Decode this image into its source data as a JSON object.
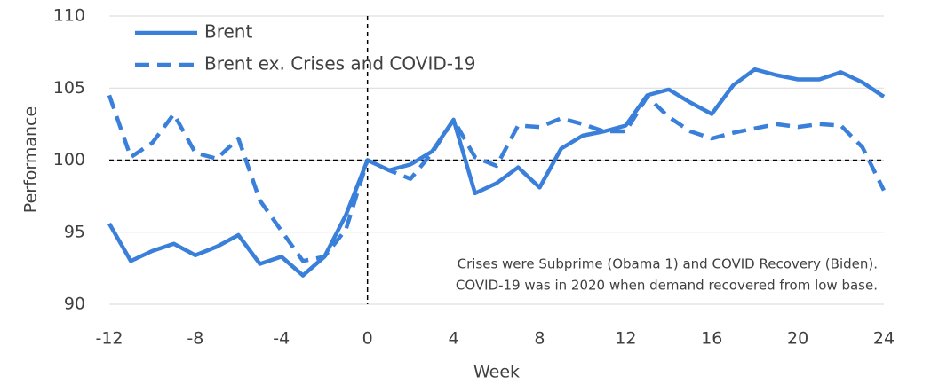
{
  "chart_data": {
    "type": "line",
    "xlabel": "Week",
    "ylabel": "Performance",
    "x": [
      -12,
      -11,
      -10,
      -9,
      -8,
      -7,
      -6,
      -5,
      -4,
      -3,
      -2,
      -1,
      0,
      1,
      2,
      3,
      4,
      5,
      6,
      7,
      8,
      9,
      10,
      11,
      12,
      13,
      14,
      15,
      16,
      17,
      18,
      19,
      20,
      21,
      22,
      23,
      24
    ],
    "series": [
      {
        "name": "Brent",
        "color": "#3a80db",
        "dash": false,
        "values": [
          95.6,
          93.0,
          93.7,
          94.2,
          93.4,
          94.0,
          94.8,
          92.8,
          93.3,
          92.0,
          93.3,
          96.2,
          100,
          99.3,
          99.7,
          100.6,
          102.8,
          97.7,
          98.4,
          99.5,
          98.1,
          100.8,
          101.7,
          102.0,
          102.4,
          104.5,
          104.9,
          104.0,
          103.2,
          105.2,
          106.3,
          105.9,
          105.6,
          105.6,
          106.1,
          105.4,
          104.4
        ]
      },
      {
        "name": "Brent ex. Crises and COVID-19",
        "color": "#3a80db",
        "dash": true,
        "values": [
          104.5,
          100.2,
          101.2,
          103.2,
          100.5,
          100.1,
          101.5,
          97.2,
          95.1,
          93.0,
          93.3,
          95.2,
          100,
          99.3,
          98.7,
          100.5,
          102.8,
          100.2,
          99.6,
          102.4,
          102.3,
          102.9,
          102.5,
          102.0,
          102.0,
          104.4,
          103.0,
          102.0,
          101.5,
          101.9,
          102.2,
          102.5,
          102.3,
          102.5,
          102.4,
          100.9,
          97.9
        ]
      }
    ],
    "xlim": [
      -12,
      24
    ],
    "xticks": [
      -12,
      -8,
      -4,
      0,
      4,
      8,
      12,
      16,
      20,
      24
    ],
    "ylim": [
      90,
      110
    ],
    "yticks": [
      90,
      95,
      100,
      105,
      110
    ],
    "grid": true,
    "reference_lines": {
      "x": [
        0
      ],
      "y": [
        100
      ]
    },
    "legend": "upper left",
    "annotation": [
      "Crises were Subprime (Obama 1) and COVID Recovery (Biden).",
      "COVID-19 was in 2020 when demand recovered from low base."
    ]
  }
}
